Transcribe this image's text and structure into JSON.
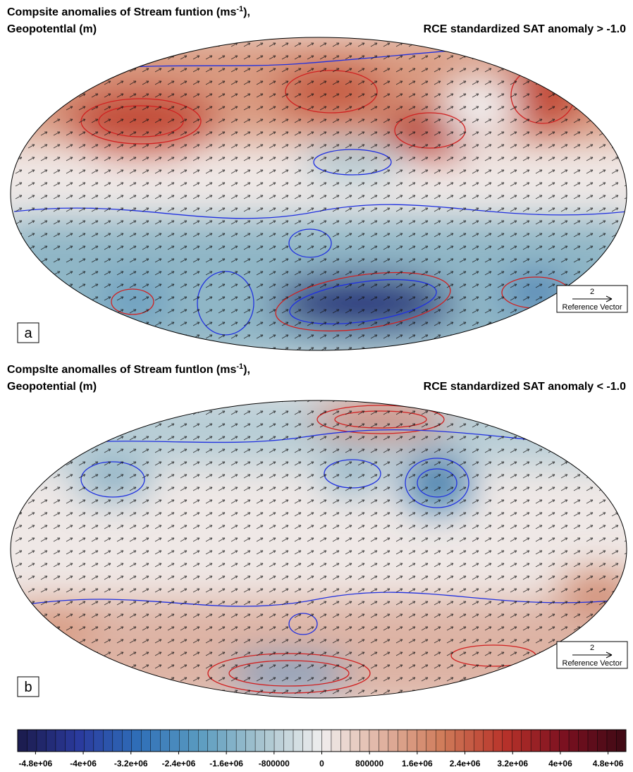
{
  "panels": [
    {
      "label": "a",
      "title": {
        "prefix": "Compsite anomalies of Stream funtion (ms",
        "superscript": "-1",
        "suffix": "),"
      },
      "subtitle": "Geopotentlal (m)",
      "right_title": "RCE standardized SAT anomaly > -1.0",
      "reference_vector": {
        "magnitude": 2,
        "label": "Reference Vector"
      }
    },
    {
      "label": "b",
      "title": {
        "prefix": "Compslte anomalles of Stream funtlon (ms",
        "superscript": "-1",
        "suffix": "),"
      },
      "subtitle": "Geopotential (m)",
      "right_title": "RCE standardized SAT anomaly < -1.0",
      "reference_vector": {
        "magnitude": 2,
        "label": "Reference Vector"
      }
    }
  ],
  "colorbar": {
    "xlim": [
      -5100000,
      5100000
    ],
    "xticks": [
      {
        "value": -4800000,
        "label": "-4.8e+06"
      },
      {
        "value": -4000000,
        "label": "-4e+06"
      },
      {
        "value": -3200000,
        "label": "-3.2e+06"
      },
      {
        "value": -2400000,
        "label": "-2.4e+06"
      },
      {
        "value": -1600000,
        "label": "-1.6e+06"
      },
      -800000,
      0,
      800000,
      {
        "value": 1600000,
        "label": "1.6e+06"
      },
      {
        "value": 2400000,
        "label": "2.4e+06"
      },
      {
        "value": 3200000,
        "label": "3.2e+06"
      },
      {
        "value": 4000000,
        "label": "4e+06"
      },
      {
        "value": 4800000,
        "label": "4.8e+06"
      }
    ],
    "colors": [
      "#1b1a4a",
      "#2a3a9e",
      "#2f6fb8",
      "#5b9cc0",
      "#a7c4cf",
      "#f0eeee",
      "#e0b2a0",
      "#cf7a58",
      "#b8332a",
      "#7a1020",
      "#3d0a14"
    ]
  }
}
